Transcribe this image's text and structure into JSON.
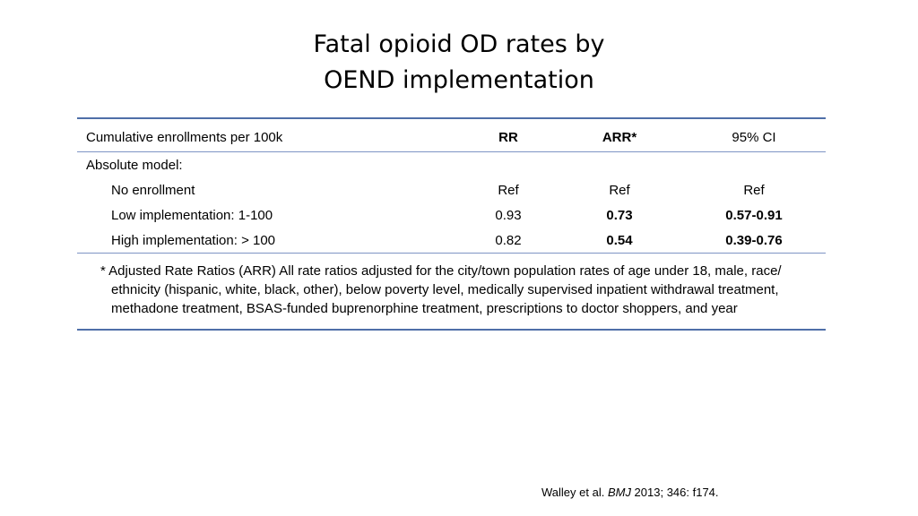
{
  "title": {
    "line1": "Fatal opioid OD rates by",
    "line2": "OEND implementation"
  },
  "table": {
    "columns": [
      "Cumulative enrollments per 100k",
      "RR",
      "ARR*",
      "95% CI"
    ],
    "section_label": "Absolute model:",
    "rows": [
      {
        "label": "No enrollment",
        "rr": "Ref",
        "arr": "Ref",
        "ci": "Ref"
      },
      {
        "label": "Low implementation: 1-100",
        "rr": "0.93",
        "arr": "0.73",
        "ci": "0.57-0.91"
      },
      {
        "label": "High implementation: > 100",
        "rr": "0.82",
        "arr": "0.54",
        "ci": "0.39-0.76"
      }
    ],
    "footnote": "* Adjusted Rate Ratios (ARR) All rate ratios adjusted for the city/town population rates of  age under 18, male, race/ ethnicity (hispanic, white, black, other), below poverty level, medically supervised inpatient withdrawal treatment, methadone treatment, BSAS-funded buprenorphine treatment, prescriptions to doctor shoppers, and year"
  },
  "citation": {
    "authors": "Walley et al. ",
    "journal": "BMJ",
    "details": " 2013; 346: f174."
  }
}
